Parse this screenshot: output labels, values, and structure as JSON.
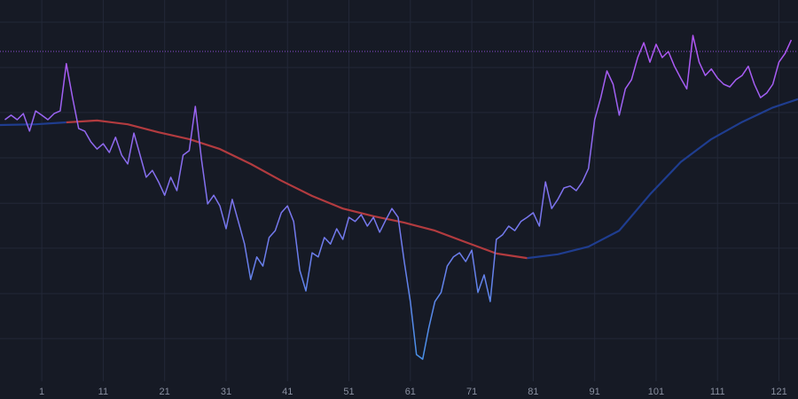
{
  "chart_data": {
    "type": "line",
    "background": "#161a25",
    "grid": true,
    "grid_color": "#232838",
    "xlim": [
      -5.8,
      124.1
    ],
    "ylim": [
      0,
      100
    ],
    "xticks": [
      1,
      11,
      21,
      31,
      41,
      51,
      61,
      71,
      81,
      91,
      101,
      111,
      121
    ],
    "ygrid": [
      94.2,
      82.3,
      70.5,
      58.6,
      46.7,
      34.9,
      23.0,
      11.2
    ],
    "hline": {
      "value": 86.5,
      "color": "#8e4fd6"
    },
    "price": {
      "color_top": "#b455f5",
      "color_bottom": "#4a90e8",
      "x": [
        -5,
        -4,
        -3,
        -2,
        -1,
        0,
        1,
        2,
        3,
        4,
        5,
        6,
        7,
        8,
        9,
        10,
        11,
        12,
        13,
        14,
        15,
        16,
        17,
        18,
        19,
        20,
        21,
        22,
        23,
        24,
        25,
        26,
        27,
        28,
        29,
        30,
        31,
        32,
        33,
        34,
        35,
        36,
        37,
        38,
        39,
        40,
        41,
        42,
        43,
        44,
        45,
        46,
        47,
        48,
        49,
        50,
        51,
        52,
        53,
        54,
        55,
        56,
        57,
        58,
        59,
        60,
        61,
        62,
        63,
        64,
        65,
        66,
        67,
        68,
        69,
        70,
        71,
        72,
        73,
        74,
        75,
        76,
        77,
        78,
        79,
        80,
        81,
        82,
        83,
        84,
        85,
        86,
        87,
        88,
        89,
        90,
        91,
        92,
        93,
        94,
        95,
        96,
        97,
        98,
        99,
        100,
        101,
        102,
        103,
        104,
        105,
        106,
        107,
        108,
        109,
        110,
        111,
        112,
        113,
        114,
        115,
        116,
        117,
        118,
        119,
        120,
        121,
        122,
        123
      ],
      "values": [
        68.6,
        69.8,
        68.6,
        70.2,
        65.6,
        70.9,
        69.8,
        68.6,
        70.2,
        70.9,
        83.3,
        74.4,
        66.3,
        65.6,
        62.8,
        60.9,
        62.3,
        60.0,
        64.0,
        59.3,
        57.0,
        65.1,
        59.3,
        53.5,
        55.3,
        52.3,
        48.8,
        53.5,
        50.0,
        59.3,
        60.5,
        72.1,
        58.1,
        46.5,
        48.8,
        46.0,
        40.0,
        47.7,
        41.9,
        36.0,
        26.7,
        32.6,
        30.2,
        37.7,
        39.5,
        44.2,
        46.0,
        41.9,
        29.1,
        23.7,
        33.7,
        32.6,
        37.7,
        36.0,
        40.0,
        37.2,
        43.0,
        41.9,
        43.7,
        40.7,
        43.0,
        39.1,
        42.3,
        45.3,
        43.0,
        31.4,
        20.9,
        7.0,
        5.8,
        14.0,
        20.9,
        23.3,
        30.2,
        32.6,
        33.7,
        31.4,
        34.4,
        23.3,
        27.9,
        20.9,
        37.2,
        38.4,
        40.7,
        39.5,
        41.9,
        43.0,
        44.2,
        40.7,
        52.3,
        45.3,
        47.7,
        50.7,
        51.2,
        50.0,
        52.3,
        55.8,
        68.6,
        74.4,
        81.4,
        77.9,
        69.8,
        76.7,
        79.1,
        84.9,
        88.8,
        83.7,
        88.4,
        84.9,
        86.5,
        82.6,
        79.5,
        76.7,
        90.7,
        83.7,
        80.2,
        81.9,
        79.5,
        77.9,
        77.2,
        79.1,
        80.2,
        82.6,
        77.9,
        74.4,
        75.6,
        77.9,
        83.7,
        86.0,
        89.5
      ]
    },
    "series": [
      {
        "color": "#1f3d8f",
        "x": [
          -5.8,
          0,
          5
        ],
        "values": [
          67.2,
          67.4,
          67.9
        ]
      },
      {
        "color": "#b23b3f",
        "x": [
          5,
          10,
          15,
          20,
          25,
          30,
          35,
          40,
          45,
          50,
          55,
          60,
          65,
          70,
          75,
          80
        ],
        "values": [
          67.9,
          68.4,
          67.4,
          65.3,
          63.5,
          60.9,
          57.0,
          52.6,
          48.6,
          45.3,
          43.3,
          41.6,
          39.5,
          36.5,
          33.5,
          32.3
        ]
      },
      {
        "color": "#1f3d8f",
        "x": [
          80,
          85,
          90,
          95,
          100,
          105,
          110,
          115,
          120,
          124.1
        ],
        "values": [
          32.3,
          33.3,
          35.3,
          39.5,
          49.0,
          57.5,
          63.5,
          68.0,
          71.8,
          74.0
        ]
      }
    ]
  }
}
